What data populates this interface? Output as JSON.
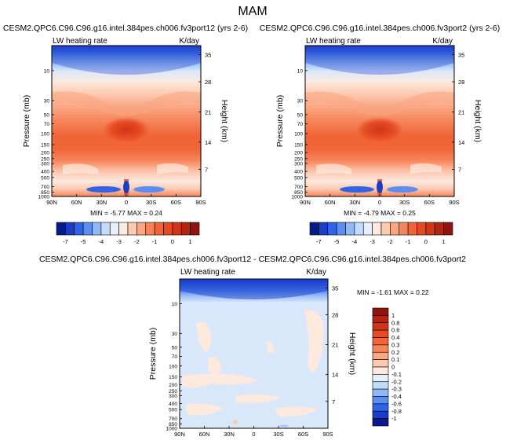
{
  "figure_title": "MAM",
  "chart_data": [
    {
      "type": "heatmap",
      "panel": "left",
      "title": "CESM2.QPC6.C96.C96.g16.intel.384pes.ch006.fv3port12 (yrs 2-6)",
      "label_left": "LW heating rate",
      "label_right": "K/day",
      "ylabel": "Pressure (mb)",
      "ylabel_right": "Height (km)",
      "x_ticks": [
        "90N",
        "60N",
        "30N",
        "0",
        "30S",
        "60S",
        "90S"
      ],
      "y_ticks": [
        "10",
        "30",
        "50",
        "70",
        "100",
        "150",
        "200",
        "250",
        "300",
        "400",
        "500",
        "700",
        "850",
        "1000"
      ],
      "y_ticks_right": [
        "35",
        "28",
        "21",
        "14",
        "7"
      ],
      "min_label": "MIN = -5.77  MAX =  0.24",
      "min": -5.77,
      "max": 0.24
    },
    {
      "type": "heatmap",
      "panel": "right",
      "title": "CESM2.QPC6.C96.C96.g16.intel.384pes.ch006.fv3port2 (yrs 2-6)",
      "label_left": "LW heating rate",
      "label_right": "K/day",
      "ylabel": "Pressure (mb)",
      "ylabel_right": "Height (km)",
      "x_ticks": [
        "90N",
        "60N",
        "30N",
        "0",
        "30S",
        "60S",
        "90S"
      ],
      "y_ticks": [
        "10",
        "30",
        "50",
        "70",
        "100",
        "150",
        "200",
        "250",
        "300",
        "400",
        "500",
        "700",
        "850",
        "1000"
      ],
      "y_ticks_right": [
        "35",
        "28",
        "21",
        "14",
        "7"
      ],
      "min_label": "MIN = -4.79  MAX =  0.25",
      "min": -4.79,
      "max": 0.25
    },
    {
      "type": "heatmap",
      "panel": "difference",
      "title": "CESM2.QPC6.C96.C96.g16.intel.384pes.ch006.fv3port12 - CESM2.QPC6.C96.C96.g16.intel.384pes.ch006.fv3port2",
      "label_left": "LW heating rate",
      "label_right": "K/day",
      "ylabel": "Pressure (mb)",
      "ylabel_right": "Height (km)",
      "x_ticks": [
        "90N",
        "60N",
        "30N",
        "0",
        "30S",
        "60S",
        "90S"
      ],
      "y_ticks": [
        "10",
        "30",
        "50",
        "70",
        "100",
        "150",
        "200",
        "250",
        "300",
        "400",
        "500",
        "700",
        "850",
        "1000"
      ],
      "y_ticks_right": [
        "35",
        "28",
        "21",
        "14",
        "7"
      ],
      "min_label": "MIN = -1.61  MAX =  0.22",
      "min": -1.61,
      "max": 0.22
    }
  ],
  "colorbar_top": {
    "labels": [
      "-7",
      "-5",
      "-4",
      "-3",
      "-2",
      "-1",
      "0",
      "1"
    ],
    "colors": [
      "#08198a",
      "#1c3cc8",
      "#2f63e8",
      "#5a8ef2",
      "#8fb8f7",
      "#c3dbfb",
      "#e6f0fd",
      "#fde9de",
      "#fcc9b1",
      "#f9a682",
      "#f6845a",
      "#f06437",
      "#e54a22",
      "#cf3519",
      "#b42413",
      "#8f1410"
    ]
  },
  "colorbar_diff": {
    "labels": [
      "1",
      "0.8",
      "0.6",
      "0.4",
      "0.3",
      "0.2",
      "0.1",
      "0",
      "-0.1",
      "-0.2",
      "-0.3",
      "-0.4",
      "-0.6",
      "-0.8",
      "-1"
    ],
    "colors": [
      "#8f1410",
      "#b42413",
      "#cf3519",
      "#e54a22",
      "#f06437",
      "#f6845a",
      "#f9a682",
      "#fcc9b1",
      "#fde9de",
      "#e6f0fd",
      "#c3dbfb",
      "#8fb8f7",
      "#5a8ef2",
      "#2f63e8",
      "#1c3cc8",
      "#08198a"
    ]
  }
}
